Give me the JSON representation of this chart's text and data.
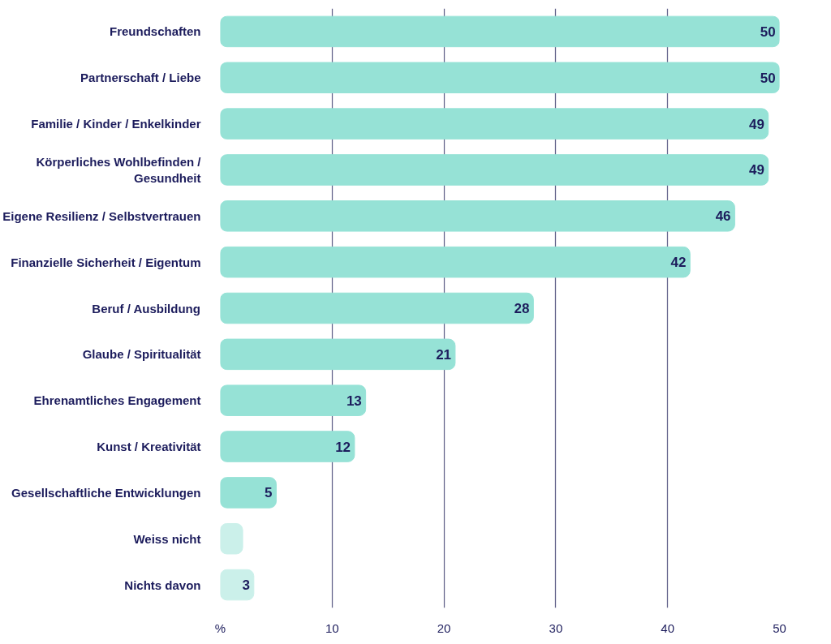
{
  "chart_data": {
    "type": "bar",
    "orientation": "horizontal",
    "categories": [
      "Freundschaften",
      "Partnerschaft / Liebe",
      "Familie / Kinder / Enkelkinder",
      "Körperliches Wohlbefinden / Gesundheit",
      "Eigene Resilienz / Selbstvertrauen",
      "Finanzielle Sicherheit / Eigentum",
      "Beruf / Ausbildung",
      "Glaube / Spiritualität",
      "Ehrenamtliches Engagement",
      "Kunst / Kreativität",
      "Gesellschaftliche Entwicklungen",
      "Weiss nicht",
      "Nichts davon"
    ],
    "values": [
      50,
      50,
      49,
      49,
      46,
      42,
      28,
      21,
      13,
      12,
      5,
      2,
      3
    ],
    "value_labels": [
      "50",
      "50",
      "49",
      "49",
      "46",
      "42",
      "28",
      "21",
      "13",
      "12",
      "5",
      null,
      "3"
    ],
    "colors": [
      "#96e2d6",
      "#96e2d6",
      "#96e2d6",
      "#96e2d6",
      "#96e2d6",
      "#96e2d6",
      "#96e2d6",
      "#96e2d6",
      "#96e2d6",
      "#96e2d6",
      "#96e2d6",
      "#cbf0ea",
      "#cbf0ea"
    ],
    "xlim": [
      0,
      50
    ],
    "xticks": [
      {
        "value": 0,
        "label": "%"
      },
      10,
      20,
      30,
      40,
      50
    ],
    "grid": "x"
  }
}
